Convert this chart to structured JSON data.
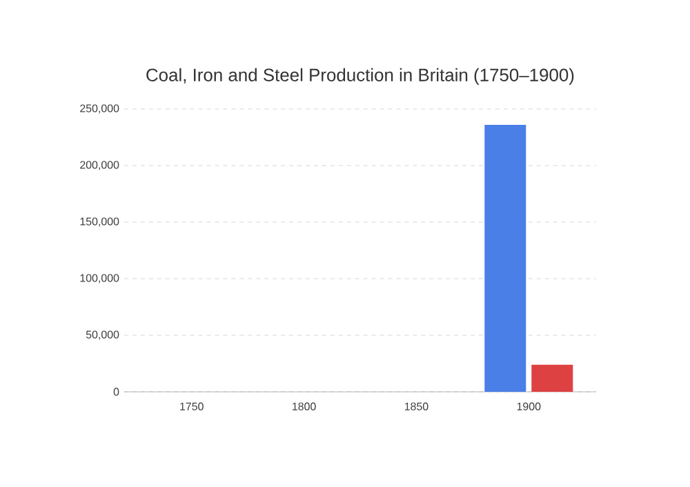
{
  "chart_data": {
    "type": "bar",
    "title": "Coal, Iron and Steel Production in Britain (1750–1900)",
    "categories": [
      "1750",
      "1800",
      "1850",
      "1900"
    ],
    "series": [
      {
        "color": "#4a7fe8",
        "values": [
          null,
          null,
          null,
          236000
        ]
      },
      {
        "color": "#de4141",
        "values": [
          null,
          null,
          null,
          24000
        ]
      }
    ],
    "ylim": [
      0,
      250000
    ],
    "yticks": [
      {
        "value": 0,
        "label": "0"
      },
      {
        "value": 50000,
        "label": "50,000"
      },
      {
        "value": 100000,
        "label": "100,000"
      },
      {
        "value": 150000,
        "label": "150,000"
      },
      {
        "value": 200000,
        "label": "200,000"
      },
      {
        "value": 250000,
        "label": "250,000"
      }
    ],
    "grid": "y"
  }
}
